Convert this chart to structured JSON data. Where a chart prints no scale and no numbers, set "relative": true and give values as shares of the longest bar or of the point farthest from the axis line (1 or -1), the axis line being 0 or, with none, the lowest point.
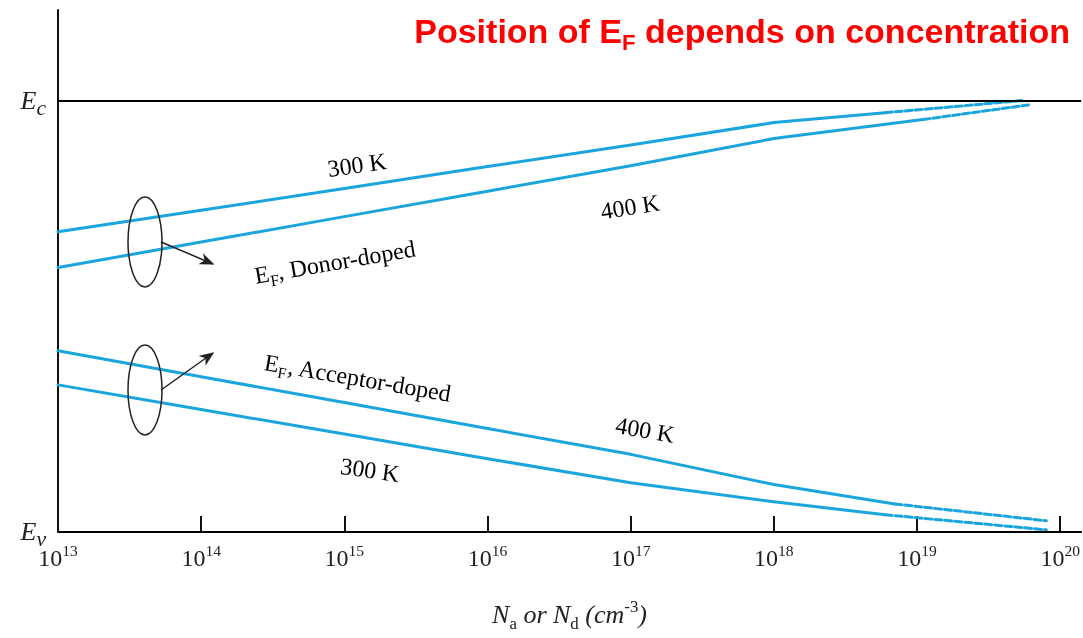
{
  "chart_data": {
    "type": "line",
    "title": "Position of E$_{F}$ depends on concentration",
    "xlabel": "N$_{a}$ or N$_{d}$ (cm$^{-3}$)",
    "log": "x",
    "xlim": [
      10000000000000.0,
      1.4e+20
    ],
    "xticks": [
      {
        "value": 10000000000000.0,
        "label": "10$^{13}$"
      },
      {
        "value": 100000000000000.0,
        "label": "10$^{14}$"
      },
      {
        "value": 1000000000000000.0,
        "label": "10$^{15}$"
      },
      {
        "value": 1e+16,
        "label": "10$^{16}$"
      },
      {
        "value": 1e+17,
        "label": "10$^{17}$"
      },
      {
        "value": 1e+18,
        "label": "10$^{18}$"
      },
      {
        "value": 1e+19,
        "label": "10$^{19}$"
      },
      {
        "value": 1e+20,
        "label": "10$^{20}$"
      }
    ],
    "relative": true,
    "ref_lines": [
      {
        "axis": "y",
        "value": 0,
        "label": "E$_{v}$",
        "color": "#000000"
      },
      {
        "axis": "y",
        "value": 1,
        "label": "E$_{c}$",
        "color": "#000000"
      }
    ],
    "grid": false,
    "marker": "none",
    "series": [
      {
        "color": "#1aa6dc",
        "line_style": "solid",
        "x": [
          10000000000000.0,
          100000000000000.0,
          1000000000000000.0,
          1e+16,
          1e+17,
          1e+18,
          6e+18
        ],
        "values": [
          0.696,
          0.746,
          0.796,
          0.847,
          0.897,
          0.949,
          0.972
        ]
      },
      {
        "color": "#1aa6dc",
        "line_style": "dashed",
        "x": [
          6e+18,
          5.4e+19
        ],
        "values": [
          0.972,
          1.0
        ]
      },
      {
        "color": "#1aa6dc",
        "line_style": "solid",
        "x": [
          10000000000000.0,
          100000000000000.0,
          1000000000000000.0,
          1e+16,
          1e+17,
          1e+18,
          1.1e+19
        ],
        "values": [
          0.613,
          0.672,
          0.731,
          0.79,
          0.849,
          0.912,
          0.956
        ]
      },
      {
        "color": "#1aa6dc",
        "line_style": "dashed",
        "x": [
          1.1e+19,
          6e+19
        ],
        "values": [
          0.956,
          0.99
        ]
      },
      {
        "color": "#1aa6dc",
        "line_style": "solid",
        "x": [
          10000000000000.0,
          100000000000000.0,
          1000000000000000.0,
          1e+16,
          1e+17,
          1e+18,
          7e+18
        ],
        "values": [
          0.42,
          0.36,
          0.3,
          0.24,
          0.18,
          0.11,
          0.065
        ]
      },
      {
        "color": "#1aa6dc",
        "line_style": "dashed",
        "x": [
          7e+18,
          8e+19
        ],
        "values": [
          0.065,
          0.026
        ]
      },
      {
        "color": "#1aa6dc",
        "line_style": "solid",
        "x": [
          10000000000000.0,
          100000000000000.0,
          1000000000000000.0,
          1e+16,
          1e+17,
          1e+18,
          6e+18
        ],
        "values": [
          0.341,
          0.284,
          0.227,
          0.17,
          0.114,
          0.07,
          0.04
        ]
      },
      {
        "color": "#1aa6dc",
        "line_style": "dashed",
        "x": [
          6e+18,
          8e+19
        ],
        "values": [
          0.04,
          0.005
        ]
      }
    ],
    "annotations": [
      "300 K",
      "400 K",
      "E$_{F}$, Donor-doped",
      "E$_{F}$, Acceptor-doped",
      "400 K",
      "300 K"
    ]
  }
}
